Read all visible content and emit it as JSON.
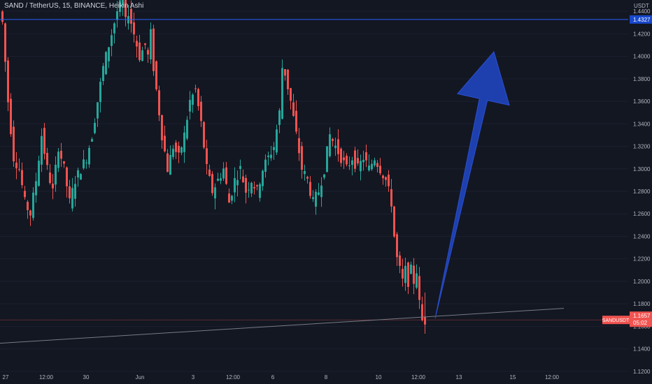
{
  "chart_title": "SAND / TetherUS, 15, BINANCE, Heikin Ashi",
  "currency": "USDT",
  "colors": {
    "background": "#131722",
    "bull": "#26a69a",
    "bear": "#ef5350",
    "hline_blue": "#2962ff",
    "hline_red": "#ef5350",
    "trendline": "#787b86",
    "arrow": "#1e40af",
    "axis_text": "#b2b5be",
    "last_price_label": "#f05350",
    "hline_label": "#1848cc"
  },
  "chart_data": {
    "type": "candlestick",
    "style": "Heikin Ashi",
    "symbol": "SAND / TetherUS",
    "interval": "15",
    "exchange": "BINANCE",
    "ylim": [
      1.11,
      1.45
    ],
    "y_ticks": [
      "1.1200",
      "1.1400",
      "1.1600",
      "1.1800",
      "1.2000",
      "1.2200",
      "1.2400",
      "1.2600",
      "1.2800",
      "1.3000",
      "1.3200",
      "1.3400",
      "1.3600",
      "1.3800",
      "1.4000",
      "1.4200",
      "1.4400"
    ],
    "x_ticks": [
      "27",
      "12:00",
      "30",
      "Jun",
      "3",
      "12:00",
      "6",
      "8",
      "10",
      "12:00",
      "13",
      "15",
      "12:00"
    ],
    "price_path": [
      [
        0,
        1.44
      ],
      [
        1,
        1.43
      ],
      [
        3,
        1.36
      ],
      [
        5,
        1.31
      ],
      [
        7,
        1.3
      ],
      [
        9,
        1.27
      ],
      [
        11,
        1.26
      ],
      [
        13,
        1.29
      ],
      [
        15,
        1.33
      ],
      [
        17,
        1.3
      ],
      [
        19,
        1.28
      ],
      [
        21,
        1.32
      ],
      [
        23,
        1.3
      ],
      [
        25,
        1.27
      ],
      [
        27,
        1.29
      ],
      [
        29,
        1.3
      ],
      [
        31,
        1.31
      ],
      [
        33,
        1.33
      ],
      [
        35,
        1.36
      ],
      [
        37,
        1.39
      ],
      [
        38,
        1.4
      ],
      [
        40,
        1.42
      ],
      [
        42,
        1.44
      ],
      [
        44,
        1.45
      ],
      [
        45,
        1.43
      ],
      [
        46,
        1.44
      ],
      [
        48,
        1.42
      ],
      [
        50,
        1.4
      ],
      [
        52,
        1.41
      ],
      [
        53,
        1.4
      ],
      [
        54,
        1.42
      ],
      [
        55,
        1.39
      ],
      [
        56,
        1.37
      ],
      [
        58,
        1.33
      ],
      [
        60,
        1.3
      ],
      [
        62,
        1.32
      ],
      [
        64,
        1.31
      ],
      [
        66,
        1.33
      ],
      [
        68,
        1.36
      ],
      [
        70,
        1.37
      ],
      [
        72,
        1.34
      ],
      [
        74,
        1.3
      ],
      [
        76,
        1.28
      ],
      [
        78,
        1.29
      ],
      [
        80,
        1.3
      ],
      [
        82,
        1.27
      ],
      [
        84,
        1.29
      ],
      [
        86,
        1.3
      ],
      [
        88,
        1.28
      ],
      [
        90,
        1.29
      ],
      [
        92,
        1.28
      ],
      [
        94,
        1.3
      ],
      [
        96,
        1.31
      ],
      [
        98,
        1.32
      ],
      [
        100,
        1.35
      ],
      [
        101,
        1.39
      ],
      [
        102,
        1.385
      ],
      [
        104,
        1.36
      ],
      [
        106,
        1.33
      ],
      [
        108,
        1.3
      ],
      [
        110,
        1.29
      ],
      [
        112,
        1.27
      ],
      [
        114,
        1.28
      ],
      [
        116,
        1.3
      ],
      [
        118,
        1.33
      ],
      [
        120,
        1.32
      ],
      [
        122,
        1.31
      ],
      [
        124,
        1.3
      ],
      [
        126,
        1.31
      ],
      [
        128,
        1.3
      ],
      [
        130,
        1.31
      ],
      [
        132,
        1.3
      ],
      [
        134,
        1.31
      ],
      [
        136,
        1.3
      ],
      [
        138,
        1.29
      ],
      [
        140,
        1.27
      ],
      [
        141,
        1.24
      ],
      [
        142,
        1.22
      ],
      [
        143,
        1.21
      ],
      [
        144,
        1.2
      ],
      [
        145,
        1.21
      ],
      [
        146,
        1.2
      ],
      [
        147,
        1.21
      ],
      [
        148,
        1.2
      ],
      [
        149,
        1.21
      ],
      [
        150,
        1.18
      ],
      [
        151,
        1.165
      ]
    ],
    "hlines": [
      {
        "value": 1.4327,
        "label": "1.4327",
        "color": "blue"
      }
    ],
    "last_price": {
      "value": 1.1657,
      "label": "1.1657",
      "price_label": "SANDUSDT",
      "countdown": "05:02"
    },
    "trendline": {
      "from": [
        -20,
        1.142
      ],
      "to": [
        201,
        1.176
      ]
    },
    "annotation": {
      "type": "arrow",
      "direction": "up",
      "from": [
        155,
        1.167
      ],
      "to": [
        176,
        1.404
      ]
    }
  }
}
